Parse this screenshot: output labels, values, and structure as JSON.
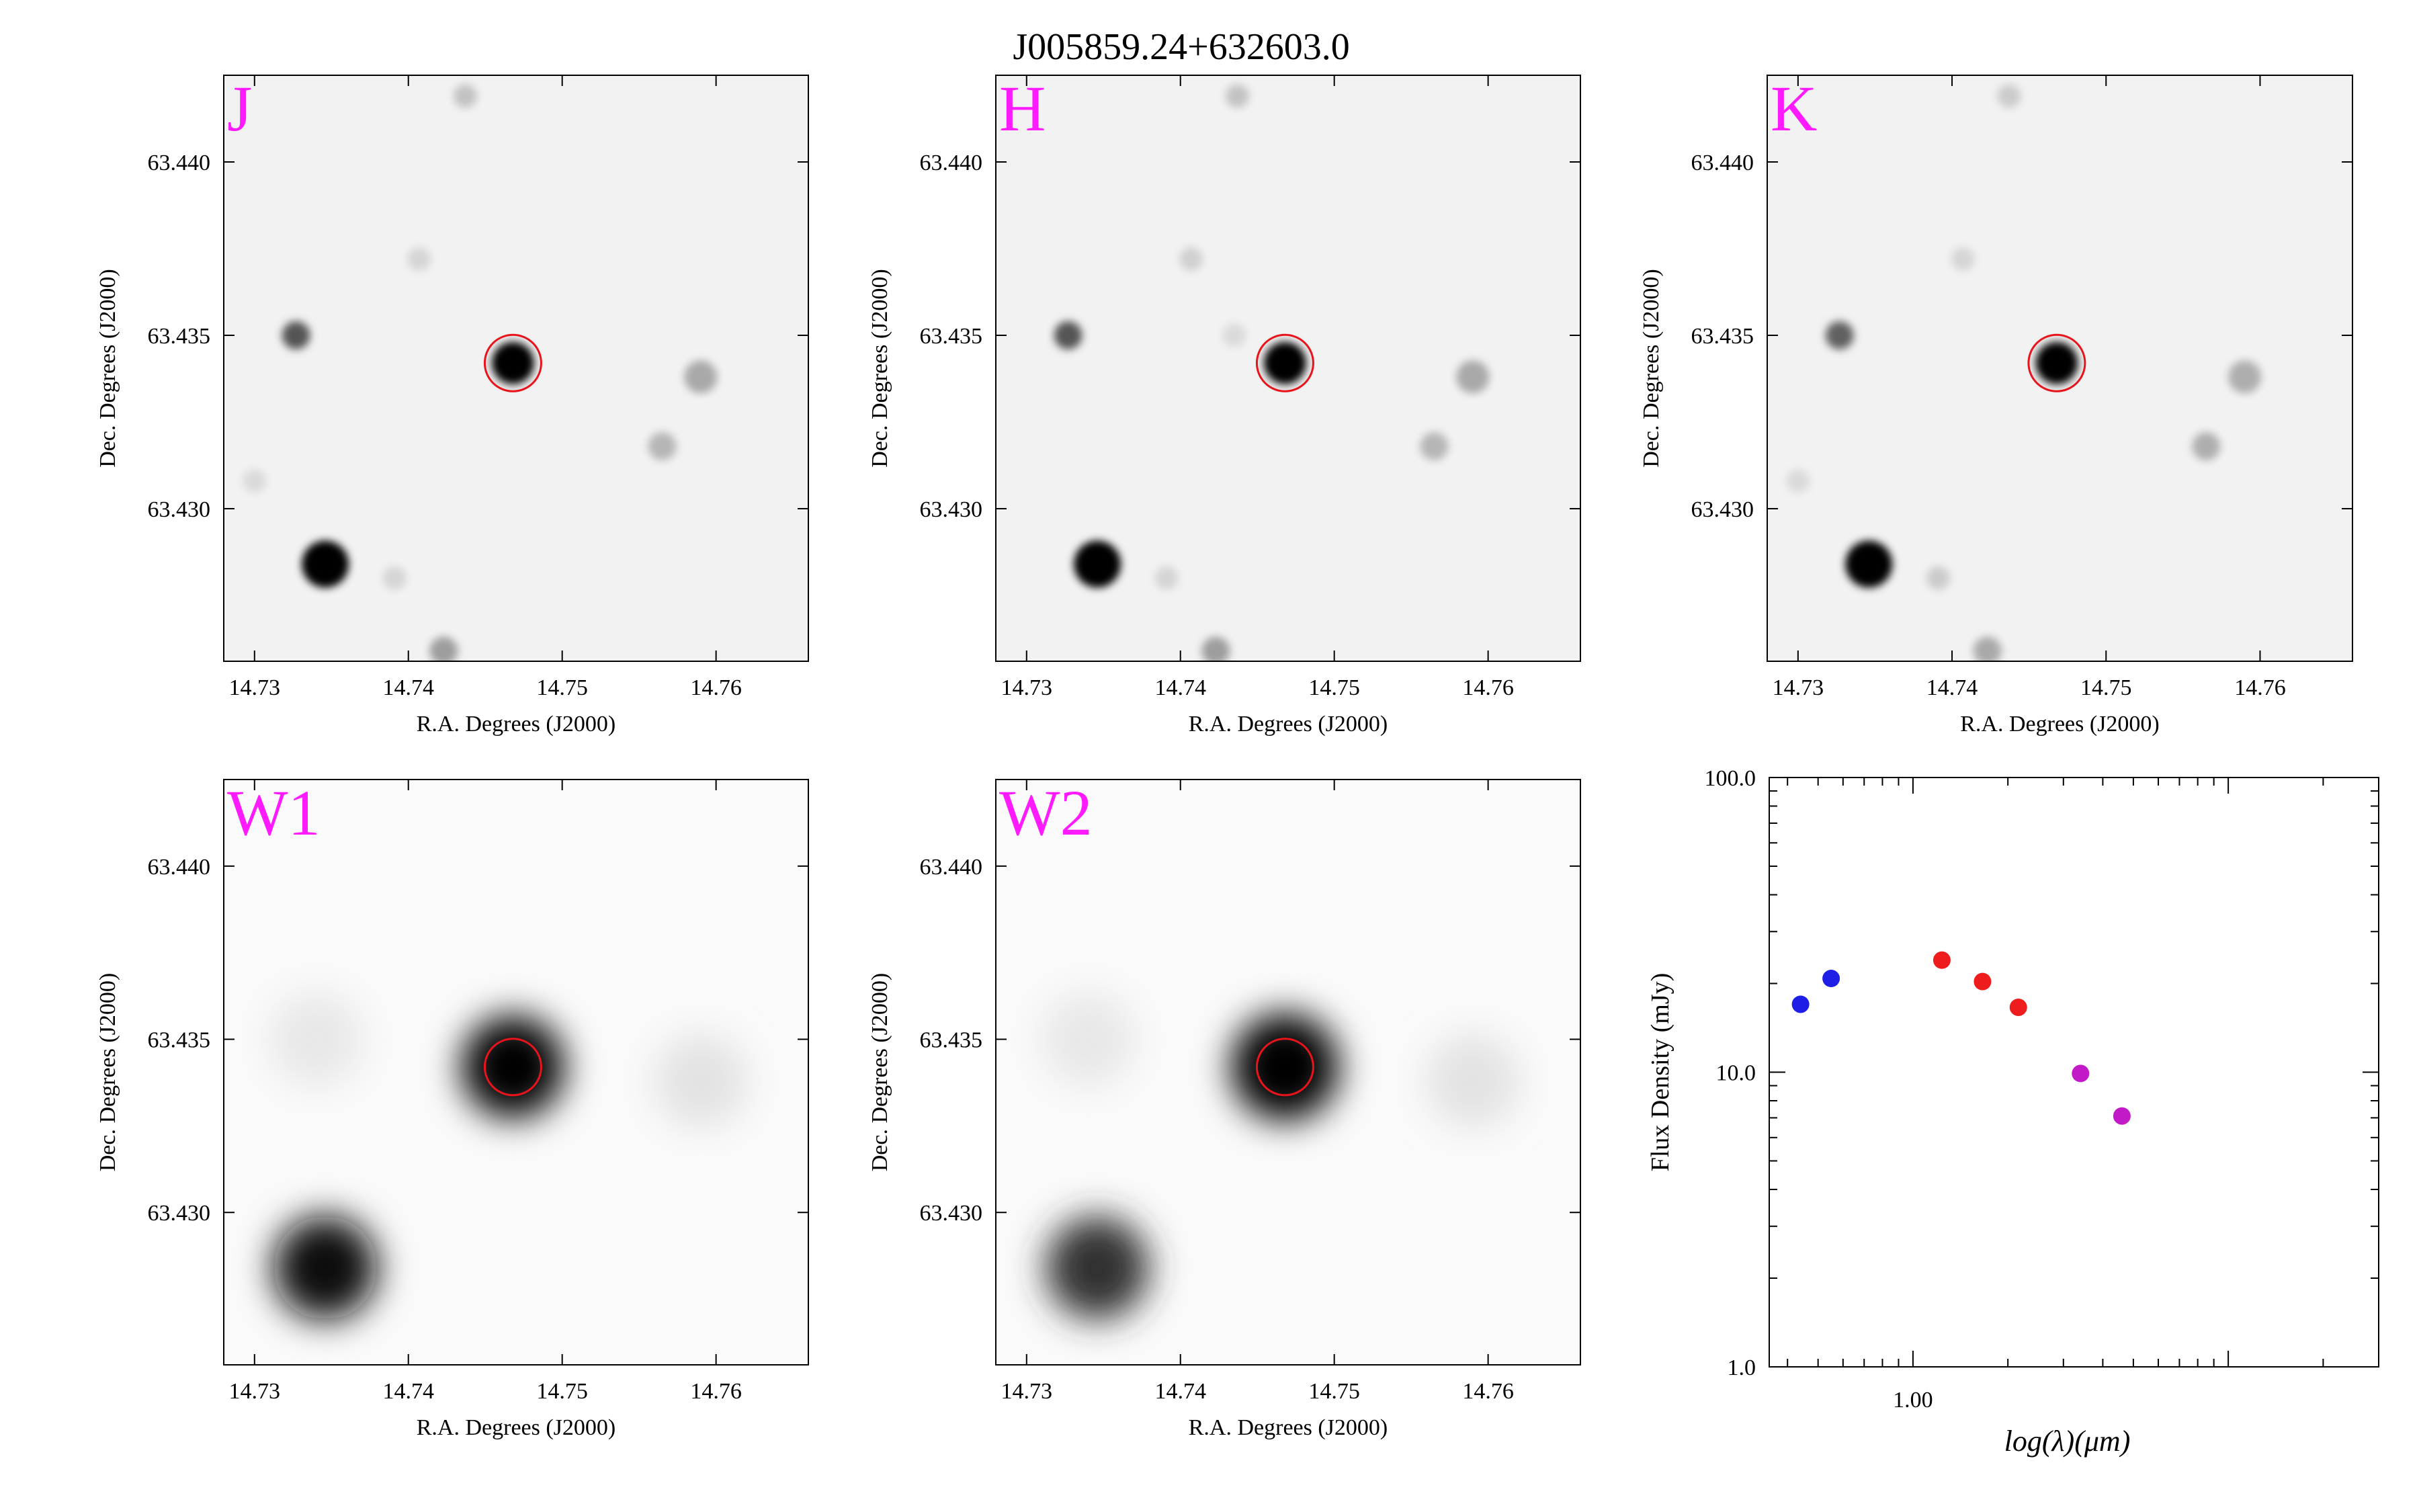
{
  "figure": {
    "title": "J005859.24+632603.0"
  },
  "colors": {
    "band_label": "#ff1aff",
    "aperture": "#e8141c",
    "sed_2mass": "#1e1ee6",
    "sed_tycho": "#ee1c1c",
    "sed_wise": "#c21ac6"
  },
  "chart_data": [
    {
      "type": "heatmap",
      "band": "J",
      "xlabel": "R.A. Degrees (J2000)",
      "ylabel": "Dec. Degrees (J2000)",
      "xlim": [
        14.728,
        14.766
      ],
      "ylim": [
        63.4256,
        63.4425
      ],
      "xticks": [
        "14.73",
        "14.74",
        "14.75",
        "14.76"
      ],
      "yticks": [
        "63.430",
        "63.435",
        "63.440"
      ],
      "target": {
        "ra": 14.7468,
        "dec": 63.4342
      },
      "sources": [
        {
          "ra": 14.7468,
          "dec": 63.4342,
          "flux": 1.0,
          "size": 0.45
        },
        {
          "ra": 14.7346,
          "dec": 63.4284,
          "flux": 1.0,
          "size": 0.5
        },
        {
          "ra": 14.7327,
          "dec": 63.435,
          "flux": 0.65,
          "size": 0.3
        },
        {
          "ra": 14.759,
          "dec": 63.4338,
          "flux": 0.3,
          "size": 0.35
        },
        {
          "ra": 14.7565,
          "dec": 63.4318,
          "flux": 0.25,
          "size": 0.3
        },
        {
          "ra": 14.7423,
          "dec": 63.4259,
          "flux": 0.35,
          "size": 0.3
        },
        {
          "ra": 14.7437,
          "dec": 63.4419,
          "flux": 0.2,
          "size": 0.25
        },
        {
          "ra": 14.7407,
          "dec": 63.4372,
          "flux": 0.12,
          "size": 0.25
        },
        {
          "ra": 14.7391,
          "dec": 63.428,
          "flux": 0.12,
          "size": 0.25
        },
        {
          "ra": 14.73,
          "dec": 63.4308,
          "flux": 0.1,
          "size": 0.25
        }
      ]
    },
    {
      "type": "heatmap",
      "band": "H",
      "xlabel": "R.A. Degrees (J2000)",
      "ylabel": "Dec. Degrees (J2000)",
      "xlim": [
        14.728,
        14.766
      ],
      "ylim": [
        63.4256,
        63.4425
      ],
      "xticks": [
        "14.73",
        "14.74",
        "14.75",
        "14.76"
      ],
      "yticks": [
        "63.430",
        "63.435",
        "63.440"
      ],
      "target": {
        "ra": 14.7468,
        "dec": 63.4342
      },
      "sources": [
        {
          "ra": 14.7468,
          "dec": 63.4342,
          "flux": 1.0,
          "size": 0.45
        },
        {
          "ra": 14.7346,
          "dec": 63.4284,
          "flux": 1.0,
          "size": 0.5
        },
        {
          "ra": 14.7327,
          "dec": 63.435,
          "flux": 0.65,
          "size": 0.3
        },
        {
          "ra": 14.759,
          "dec": 63.4338,
          "flux": 0.3,
          "size": 0.35
        },
        {
          "ra": 14.7565,
          "dec": 63.4318,
          "flux": 0.25,
          "size": 0.3
        },
        {
          "ra": 14.7423,
          "dec": 63.4259,
          "flux": 0.35,
          "size": 0.3
        },
        {
          "ra": 14.7437,
          "dec": 63.4419,
          "flux": 0.2,
          "size": 0.25
        },
        {
          "ra": 14.7407,
          "dec": 63.4372,
          "flux": 0.14,
          "size": 0.25
        },
        {
          "ra": 14.7391,
          "dec": 63.428,
          "flux": 0.12,
          "size": 0.25
        },
        {
          "ra": 14.7435,
          "dec": 63.435,
          "flux": 0.1,
          "size": 0.25
        }
      ]
    },
    {
      "type": "heatmap",
      "band": "K",
      "xlabel": "R.A. Degrees (J2000)",
      "ylabel": "Dec. Degrees (J2000)",
      "xlim": [
        14.728,
        14.766
      ],
      "ylim": [
        63.4256,
        63.4425
      ],
      "xticks": [
        "14.73",
        "14.74",
        "14.75",
        "14.76"
      ],
      "yticks": [
        "63.430",
        "63.435",
        "63.440"
      ],
      "target": {
        "ra": 14.7468,
        "dec": 63.4342
      },
      "sources": [
        {
          "ra": 14.7468,
          "dec": 63.4342,
          "flux": 1.0,
          "size": 0.45
        },
        {
          "ra": 14.7346,
          "dec": 63.4284,
          "flux": 1.0,
          "size": 0.5
        },
        {
          "ra": 14.7327,
          "dec": 63.435,
          "flux": 0.6,
          "size": 0.3
        },
        {
          "ra": 14.759,
          "dec": 63.4338,
          "flux": 0.28,
          "size": 0.35
        },
        {
          "ra": 14.7565,
          "dec": 63.4318,
          "flux": 0.28,
          "size": 0.3
        },
        {
          "ra": 14.7423,
          "dec": 63.4259,
          "flux": 0.3,
          "size": 0.3
        },
        {
          "ra": 14.7437,
          "dec": 63.4419,
          "flux": 0.16,
          "size": 0.25
        },
        {
          "ra": 14.7407,
          "dec": 63.4372,
          "flux": 0.12,
          "size": 0.25
        },
        {
          "ra": 14.7391,
          "dec": 63.428,
          "flux": 0.16,
          "size": 0.25
        },
        {
          "ra": 14.73,
          "dec": 63.4308,
          "flux": 0.1,
          "size": 0.25
        }
      ]
    },
    {
      "type": "heatmap",
      "band": "W1",
      "xlabel": "R.A. Degrees (J2000)",
      "ylabel": "Dec. Degrees (J2000)",
      "xlim": [
        14.728,
        14.766
      ],
      "ylim": [
        63.4256,
        63.4425
      ],
      "xticks": [
        "14.73",
        "14.74",
        "14.75",
        "14.76"
      ],
      "yticks": [
        "63.430",
        "63.435",
        "63.440"
      ],
      "target": {
        "ra": 14.7468,
        "dec": 63.4342
      },
      "sources": [
        {
          "ra": 14.7468,
          "dec": 63.4342,
          "flux": 1.0,
          "size": 1.1
        },
        {
          "ra": 14.7346,
          "dec": 63.4284,
          "flux": 0.95,
          "size": 1.1
        },
        {
          "ra": 14.759,
          "dec": 63.4338,
          "flux": 0.06,
          "size": 1.0
        },
        {
          "ra": 14.734,
          "dec": 63.435,
          "flux": 0.04,
          "size": 1.0
        }
      ]
    },
    {
      "type": "heatmap",
      "band": "W2",
      "xlabel": "R.A. Degrees (J2000)",
      "ylabel": "Dec. Degrees (J2000)",
      "xlim": [
        14.728,
        14.766
      ],
      "ylim": [
        63.4256,
        63.4425
      ],
      "xticks": [
        "14.73",
        "14.74",
        "14.75",
        "14.76"
      ],
      "yticks": [
        "63.430",
        "63.435",
        "63.440"
      ],
      "target": {
        "ra": 14.7468,
        "dec": 63.4342
      },
      "sources": [
        {
          "ra": 14.7468,
          "dec": 63.4342,
          "flux": 1.0,
          "size": 1.15
        },
        {
          "ra": 14.7346,
          "dec": 63.4284,
          "flux": 0.8,
          "size": 1.1
        },
        {
          "ra": 14.759,
          "dec": 63.4338,
          "flux": 0.06,
          "size": 1.0
        },
        {
          "ra": 14.734,
          "dec": 63.435,
          "flux": 0.04,
          "size": 1.0
        }
      ]
    },
    {
      "type": "scatter",
      "xlabel": "log(λ)(μm)",
      "ylabel": "Flux Density (mJy)",
      "xscale": "log",
      "yscale": "log",
      "xlim": [
        0.35,
        30
      ],
      "ylim": [
        1,
        100
      ],
      "xticks": [
        "1.00"
      ],
      "yticks": [
        "1.0",
        "10.0",
        "100.0"
      ],
      "grid": false,
      "legend": "none",
      "points": [
        {
          "x": 0.44,
          "y": 17.0,
          "group": "sed_2mass"
        },
        {
          "x": 0.55,
          "y": 20.8,
          "group": "sed_2mass"
        },
        {
          "x": 1.235,
          "y": 24.0,
          "group": "sed_tycho"
        },
        {
          "x": 1.662,
          "y": 20.3,
          "group": "sed_tycho"
        },
        {
          "x": 2.159,
          "y": 16.6,
          "group": "sed_tycho"
        },
        {
          "x": 3.4,
          "y": 9.9,
          "group": "sed_wise"
        },
        {
          "x": 4.6,
          "y": 7.1,
          "group": "sed_wise"
        }
      ]
    }
  ]
}
